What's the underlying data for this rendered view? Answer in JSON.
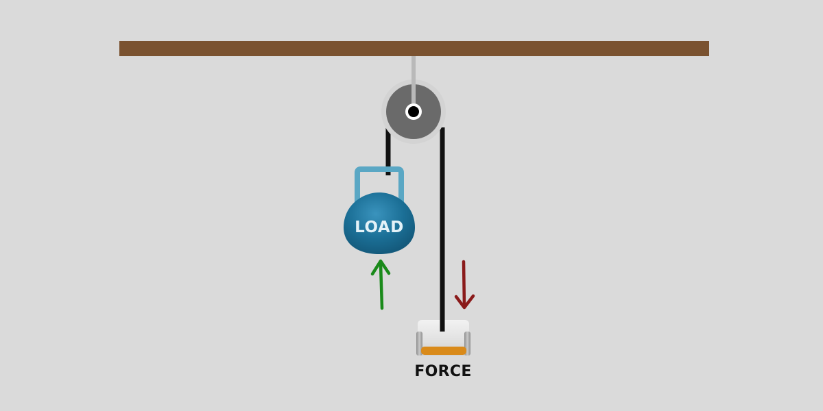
{
  "diagram": {
    "load_label": "LOAD",
    "force_label": "FORCE"
  },
  "colors": {
    "background": "#dadada",
    "beam": "#7a5230",
    "pulley_rim": "#d3d3d3",
    "pulley_wheel": "#6a6a6a",
    "rope": "#111111",
    "load": "#1b6f96",
    "load_handle": "#5aa7c4",
    "up_arrow": "#1a8a1a",
    "down_arrow": "#8a1a1a",
    "handle_grip": "#d98a1a"
  },
  "icons": {
    "support": "ceiling-beam-icon",
    "pulley": "pulley-wheel-icon",
    "load": "kettlebell-weight-icon",
    "handle": "pull-handle-icon",
    "up_arrow": "arrow-up-icon",
    "down_arrow": "arrow-down-icon"
  }
}
